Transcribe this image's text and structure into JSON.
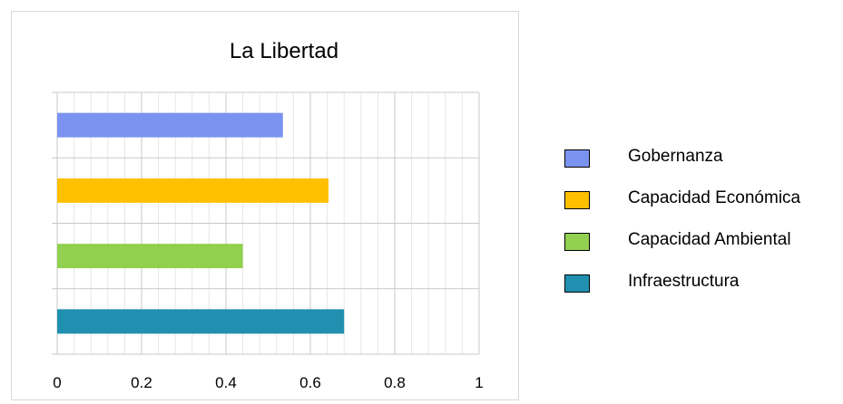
{
  "chart_data": {
    "type": "bar",
    "orientation": "horizontal",
    "title": "La Libertad",
    "xlabel": "",
    "ylabel": "",
    "xlim": [
      0,
      1
    ],
    "x_ticks": [
      "0",
      "0.2",
      "0.4",
      "0.6",
      "0.8",
      "1"
    ],
    "grid": true,
    "legend_position": "right",
    "series": [
      {
        "name": "Gobernanza",
        "value": 0.535,
        "color": "#7b93f0"
      },
      {
        "name": "Capacidad Económica",
        "value": 0.643,
        "color": "#ffc000"
      },
      {
        "name": "Capacidad Ambiental",
        "value": 0.44,
        "color": "#92d050"
      },
      {
        "name": "Infraestructura",
        "value": 0.68,
        "color": "#2190b0"
      }
    ]
  }
}
